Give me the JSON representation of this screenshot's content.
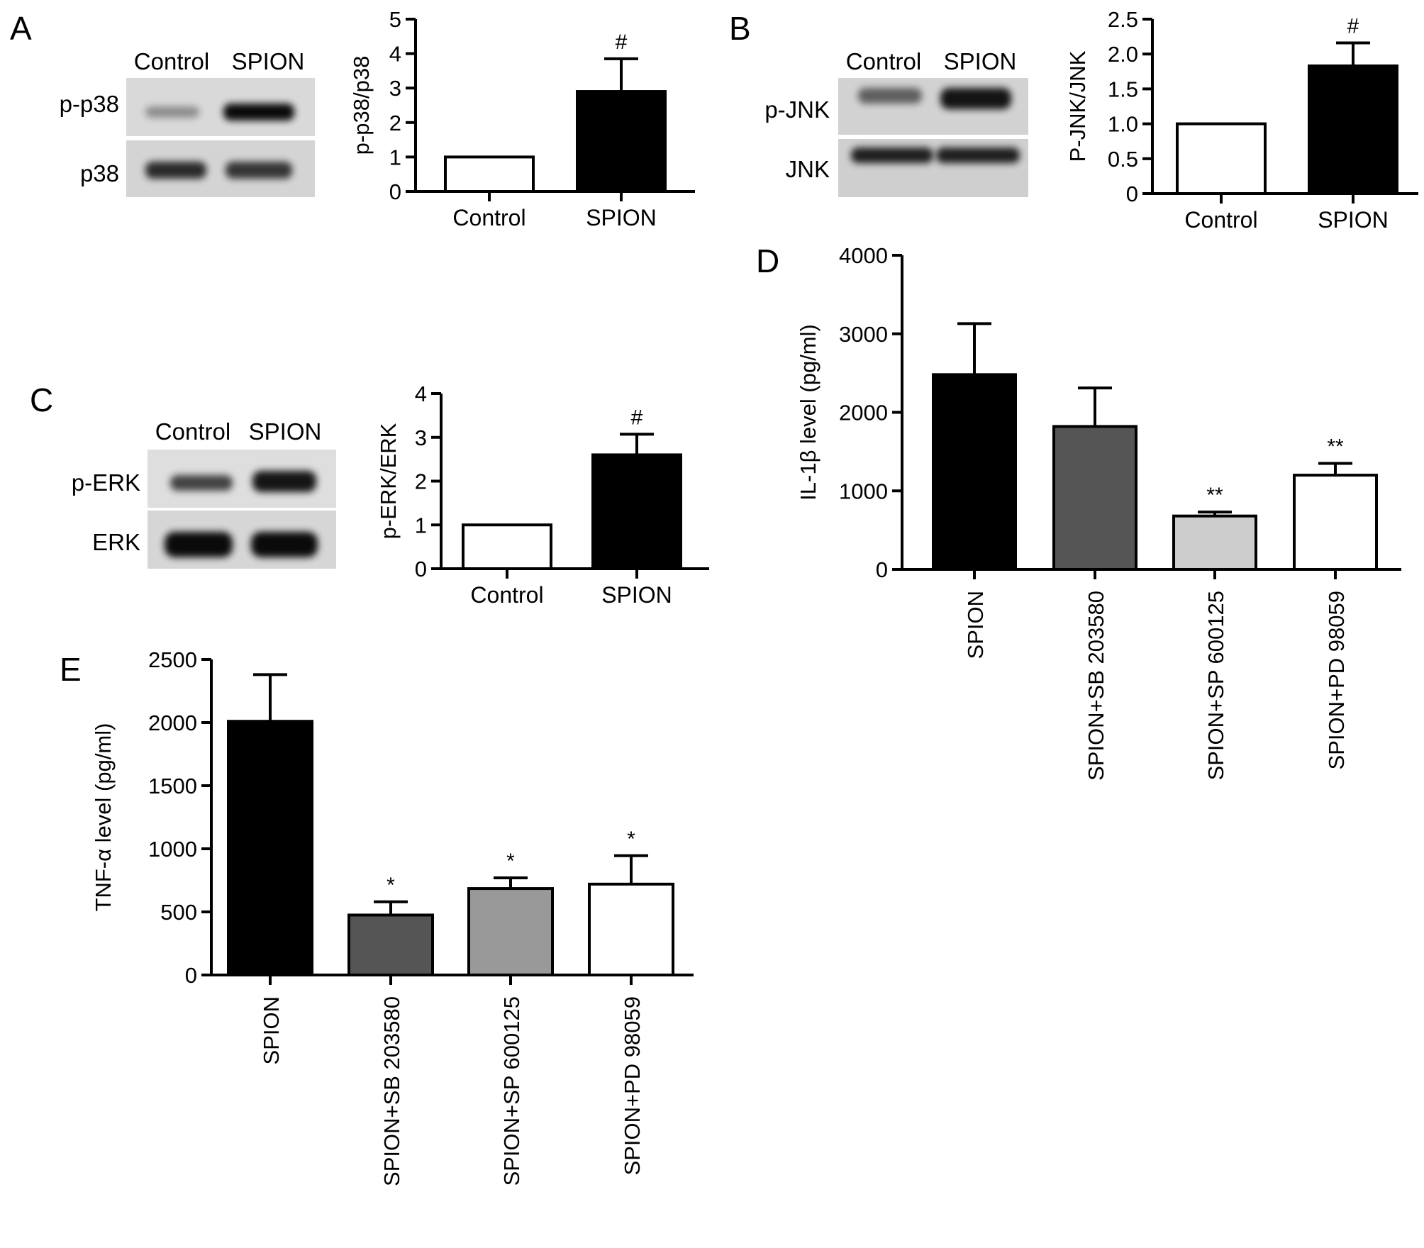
{
  "figure": {
    "panel_labels": {
      "a": "A",
      "b": "B",
      "c": "C",
      "d": "D",
      "e": "E"
    }
  },
  "blots": [
    {
      "id": "blot-a",
      "columns": [
        "Control",
        "SPION"
      ],
      "rows": [
        "p-p38",
        "p38"
      ],
      "bands": [
        [
          0.35,
          0.95
        ],
        [
          0.8,
          0.75
        ]
      ]
    },
    {
      "id": "blot-b",
      "columns": [
        "Control",
        "SPION"
      ],
      "rows": [
        "p-JNK",
        "JNK"
      ],
      "bands": [
        [
          0.55,
          0.9
        ],
        [
          0.85,
          0.85
        ]
      ]
    },
    {
      "id": "blot-c",
      "columns": [
        "Control",
        "SPION"
      ],
      "rows": [
        "p-ERK",
        "ERK"
      ],
      "bands": [
        [
          0.7,
          0.9
        ],
        [
          0.95,
          0.95
        ]
      ]
    }
  ],
  "chart_data": [
    {
      "panel": "A",
      "type": "bar",
      "title": "",
      "xlabel": "",
      "ylabel": "p-p38/p38",
      "categories": [
        "Control",
        "SPION"
      ],
      "values": [
        1,
        2.9
      ],
      "errors": [
        0,
        0.95
      ],
      "annotations": [
        "",
        "#"
      ],
      "colors": [
        "#ffffff",
        "#000000"
      ],
      "ylim": [
        0,
        5
      ],
      "yticks": [
        "0",
        "1",
        "2",
        "3",
        "4",
        "5"
      ],
      "grid": false
    },
    {
      "panel": "B",
      "type": "bar",
      "title": "",
      "xlabel": "",
      "ylabel": "P-JNK/JNK",
      "categories": [
        "Control",
        "SPION"
      ],
      "values": [
        1.0,
        1.83
      ],
      "errors": [
        0,
        0.33
      ],
      "annotations": [
        "",
        "#"
      ],
      "colors": [
        "#ffffff",
        "#000000"
      ],
      "ylim": [
        0,
        2.5
      ],
      "yticks": [
        "0",
        "0.5",
        "1.0",
        "1.5",
        "2.0",
        "2.5"
      ],
      "grid": false
    },
    {
      "panel": "C",
      "type": "bar",
      "title": "",
      "xlabel": "",
      "ylabel": "p-ERK/ERK",
      "categories": [
        "Control",
        "SPION"
      ],
      "values": [
        1,
        2.6
      ],
      "errors": [
        0,
        0.47
      ],
      "annotations": [
        "",
        "#"
      ],
      "colors": [
        "#ffffff",
        "#000000"
      ],
      "ylim": [
        0,
        4
      ],
      "yticks": [
        "0",
        "1",
        "2",
        "3",
        "4"
      ],
      "grid": false
    },
    {
      "panel": "D",
      "type": "bar",
      "title": "",
      "xlabel": "",
      "ylabel": "IL-1β level (pg/ml)",
      "categories": [
        "SPION",
        "SPION+SB 203580",
        "SPION+SP 600125",
        "SPION+PD 98059"
      ],
      "values": [
        2480,
        1820,
        680,
        1200
      ],
      "errors": [
        650,
        490,
        50,
        150
      ],
      "annotations": [
        "",
        "",
        "**",
        "**"
      ],
      "colors": [
        "#000000",
        "#555555",
        "#cccccc",
        "#ffffff"
      ],
      "ylim": [
        0,
        4000
      ],
      "yticks": [
        "0",
        "1000",
        "2000",
        "3000",
        "4000"
      ],
      "grid": false
    },
    {
      "panel": "E",
      "type": "bar",
      "title": "",
      "xlabel": "",
      "ylabel": "TNF-α level (pg/ml)",
      "categories": [
        "SPION",
        "SPION+SB 203580",
        "SPION+SP 600125",
        "SPION+PD 98059"
      ],
      "values": [
        2010,
        475,
        685,
        720
      ],
      "errors": [
        370,
        105,
        85,
        225
      ],
      "annotations": [
        "",
        "*",
        "*",
        "*"
      ],
      "colors": [
        "#000000",
        "#555555",
        "#999999",
        "#ffffff"
      ],
      "ylim": [
        0,
        2500
      ],
      "yticks": [
        "0",
        "500",
        "1000",
        "1500",
        "2000",
        "2500"
      ],
      "grid": false
    }
  ]
}
